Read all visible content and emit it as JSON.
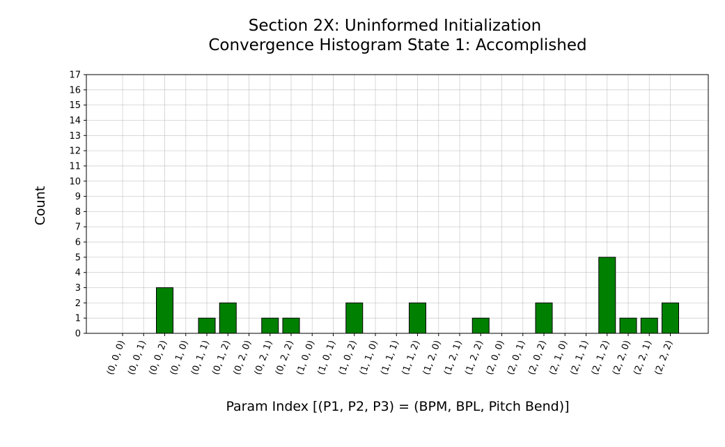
{
  "chart_data": {
    "type": "bar",
    "title": "Section 2X: Uninformed Initialization",
    "subtitle": "Convergence Histogram State 1: Accomplished",
    "xlabel": "Param Index [(P1, P2, P3) = (BPM, BPL, Pitch Bend)]",
    "ylabel": "Count",
    "ylim": [
      0,
      17
    ],
    "yticks": [
      0,
      1,
      2,
      3,
      4,
      5,
      6,
      7,
      8,
      9,
      10,
      11,
      12,
      13,
      14,
      15,
      16,
      17
    ],
    "grid": true,
    "categories": [
      "(0, 0, 0)",
      "(0, 0, 1)",
      "(0, 0, 2)",
      "(0, 1, 0)",
      "(0, 1, 1)",
      "(0, 1, 2)",
      "(0, 2, 0)",
      "(0, 2, 1)",
      "(0, 2, 2)",
      "(1, 0, 0)",
      "(1, 0, 1)",
      "(1, 0, 2)",
      "(1, 1, 0)",
      "(1, 1, 1)",
      "(1, 1, 2)",
      "(1, 2, 0)",
      "(1, 2, 1)",
      "(1, 2, 2)",
      "(2, 0, 0)",
      "(2, 0, 1)",
      "(2, 0, 2)",
      "(2, 1, 0)",
      "(2, 1, 1)",
      "(2, 1, 2)",
      "(2, 2, 0)",
      "(2, 2, 1)",
      "(2, 2, 2)"
    ],
    "values": [
      0,
      0,
      3,
      0,
      1,
      2,
      0,
      1,
      1,
      0,
      0,
      2,
      0,
      0,
      2,
      0,
      0,
      1,
      0,
      0,
      2,
      0,
      0,
      5,
      1,
      1,
      2
    ],
    "bar_color": "#008000"
  }
}
